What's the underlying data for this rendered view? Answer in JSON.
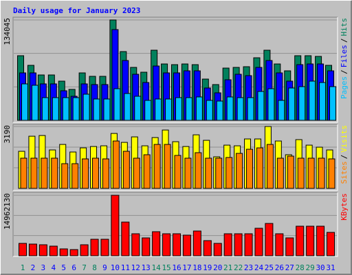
{
  "title": "Daily usage for January 2023",
  "categories": [
    "1",
    "2",
    "3",
    "4",
    "5",
    "6",
    "7",
    "8",
    "9",
    "10",
    "11",
    "12",
    "13",
    "14",
    "15",
    "16",
    "17",
    "18",
    "19",
    "20",
    "21",
    "22",
    "23",
    "24",
    "25",
    "26",
    "27",
    "28",
    "29",
    "30",
    "31"
  ],
  "category_colors": [
    "#00805c",
    "#0000ff",
    "#0000ff",
    "#0000ff",
    "#0000ff",
    "#0000ff",
    "#00805c",
    "#00805c",
    "#0000ff",
    "#0000ff",
    "#0000ff",
    "#0000ff",
    "#0000ff",
    "#00805c",
    "#00805c",
    "#0000ff",
    "#0000ff",
    "#0000ff",
    "#0000ff",
    "#0000ff",
    "#00805c",
    "#00805c",
    "#0000ff",
    "#0000ff",
    "#0000ff",
    "#0000ff",
    "#0000ff",
    "#00805c",
    "#00805c",
    "#0000ff",
    "#0000ff"
  ],
  "chart_data": [
    {
      "type": "bar",
      "ylim": [
        0,
        134045
      ],
      "yticks": [
        134045
      ],
      "legend_separator": "/",
      "series": [
        {
          "name": "Hits",
          "color": "#00805c",
          "values": [
            86292,
            73440,
            60588,
            60588,
            52326,
            41310,
            63342,
            58752,
            58752,
            134045,
            91800,
            70686,
            64260,
            93636,
            75276,
            74358,
            75276,
            74358,
            55080,
            47736,
            69768,
            70686,
            71604,
            83538,
            93636,
            75276,
            66096,
            86292,
            86292,
            85374,
            73440
          ]
        },
        {
          "name": "Files",
          "color": "#0000ff",
          "values": [
            63342,
            63342,
            48654,
            48654,
            39474,
            32130,
            48654,
            47736,
            47736,
            121176,
            79866,
            61506,
            50490,
            72522,
            63342,
            63342,
            66096,
            66096,
            43146,
            36720,
            54162,
            61506,
            59670,
            70686,
            79866,
            63342,
            52326,
            74358,
            75276,
            75276,
            66096
          ]
        },
        {
          "name": "Pages",
          "color": "#00c0ff",
          "values": [
            48654,
            46818,
            30294,
            30294,
            30294,
            30294,
            34884,
            28458,
            28458,
            42228,
            35802,
            32130,
            26622,
            28458,
            28458,
            30294,
            30294,
            31212,
            26622,
            25704,
            31212,
            30294,
            30294,
            38556,
            42228,
            26622,
            43146,
            44982,
            52326,
            50490,
            44982
          ]
        }
      ]
    },
    {
      "type": "bar",
      "ylim": [
        0,
        3190
      ],
      "yticks": [
        3190
      ],
      "legend_separator": "/",
      "series": [
        {
          "name": "Visits",
          "color": "#ffff00",
          "values": [
            1912,
            2690,
            2726,
            1982,
            2266,
            1876,
            2089,
            2159,
            2195,
            2832,
            2372,
            2655,
            2195,
            2620,
            3009,
            2407,
            2159,
            2761,
            2478,
            1628,
            2230,
            2195,
            2549,
            2549,
            3190,
            2443,
            1735,
            2513,
            2230,
            2124,
            1982
          ]
        },
        {
          "name": "Sites",
          "color": "#ff8000",
          "values": [
            1558,
            1558,
            1558,
            1558,
            1274,
            1274,
            1522,
            1558,
            1522,
            2443,
            1912,
            1558,
            1735,
            2266,
            2266,
            1699,
            1558,
            1841,
            1558,
            1558,
            1593,
            1805,
            2018,
            2089,
            2266,
            1558,
            1664,
            1558,
            1558,
            1558,
            1522
          ]
        }
      ]
    },
    {
      "type": "bar",
      "ylim": [
        0,
        14962130
      ],
      "yticks": [
        14962130
      ],
      "legend_separator": "/",
      "series": [
        {
          "name": "KBytes",
          "color": "#ff0000",
          "values": [
            3060432,
            2890408,
            2720384,
            2380336,
            1700240,
            1530216,
            2720384,
            4080576,
            4080576,
            14962130,
            8331176,
            5440768,
            4420624,
            5950840,
            5440768,
            5440768,
            5100720,
            6120864,
            3740528,
            3060432,
            5440768,
            5440768,
            5440768,
            6800960,
            7991128,
            5440768,
            4420624,
            7311032,
            7311032,
            7311032,
            5780816
          ]
        }
      ]
    }
  ]
}
